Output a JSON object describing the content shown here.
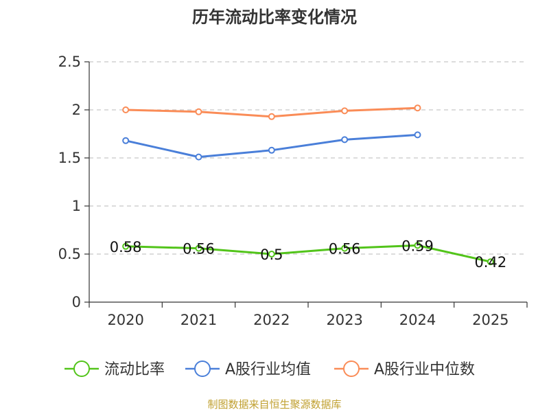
{
  "chart_data": {
    "type": "line",
    "title": "历年流动比率变化情况",
    "categories": [
      "2020",
      "2021",
      "2022",
      "2023",
      "2024",
      "2025"
    ],
    "y_ticks": [
      "0",
      "0.5",
      "1",
      "1.5",
      "2",
      "2.5"
    ],
    "ylim": [
      0,
      2.5
    ],
    "grid": true,
    "legend_position": "bottom",
    "series": [
      {
        "name": "流动比率",
        "color": "#52c41a",
        "values": [
          0.58,
          0.56,
          0.5,
          0.56,
          0.59,
          0.42
        ],
        "labels": [
          "0.58",
          "0.56",
          "0.5",
          "0.56",
          "0.59",
          "0.42"
        ],
        "show_labels": true
      },
      {
        "name": "A股行业均值",
        "color": "#4a7fd9",
        "values": [
          1.68,
          1.51,
          1.58,
          1.69,
          1.74,
          null
        ],
        "show_labels": false
      },
      {
        "name": "A股行业中位数",
        "color": "#fa8c57",
        "values": [
          2.0,
          1.98,
          1.93,
          1.99,
          2.02,
          null
        ],
        "show_labels": false
      }
    ],
    "source": "制图数据来自恒生聚源数据库"
  }
}
